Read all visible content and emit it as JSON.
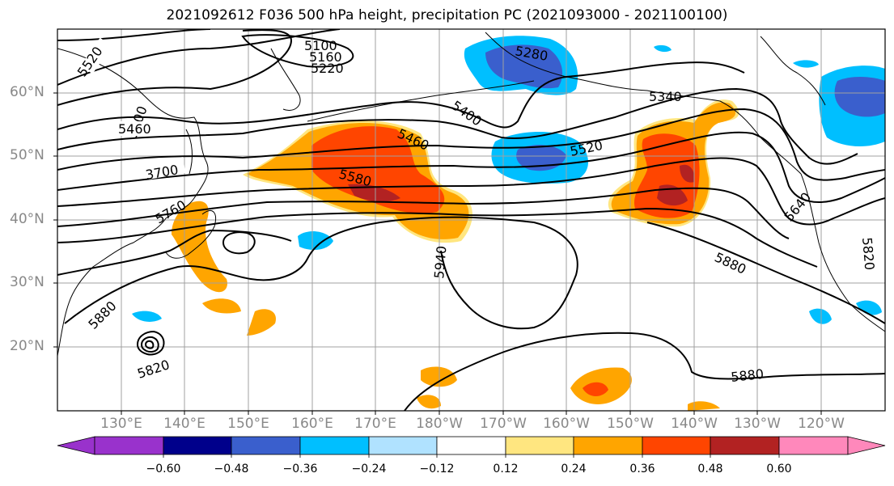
{
  "title": "2021092612 F036 500 hPa height, precipitation PC (2021093000 - 2021100100)",
  "latitude_labels": [
    "60°N",
    "50°N",
    "40°N",
    "30°N",
    "20°N"
  ],
  "longitude_labels": [
    "130°E",
    "140°E",
    "150°E",
    "160°E",
    "170°E",
    "180°W",
    "170°W",
    "160°W",
    "150°W",
    "140°W",
    "130°W",
    "120°W"
  ],
  "contour_labels": [
    "5520",
    "5400",
    "5460",
    "3700",
    "5760",
    "5880",
    "5820",
    "5580",
    "5100",
    "5160",
    "5220",
    "5280",
    "5340",
    "5400",
    "5460",
    "5520",
    "5640",
    "5820",
    "5880",
    "5940",
    "5880",
    "5640"
  ],
  "colorbar": {
    "ticks": [
      "−0.60",
      "−0.48",
      "−0.36",
      "−0.24",
      "−0.12",
      "0.12",
      "0.24",
      "0.36",
      "0.48",
      "0.60"
    ],
    "colors": [
      "#9932cc",
      "#00008b",
      "#3a5fcd",
      "#00bfff",
      "#b0e2ff",
      "#ffffff",
      "#ffe680",
      "#ffa500",
      "#ff4500",
      "#b22222",
      "#ff88bb"
    ]
  },
  "fill_colors": {
    "neg_light": "#b0e2ff",
    "neg_mid": "#00bfff",
    "neg_dark": "#3a5fcd",
    "pos_light": "#ffe680",
    "pos_mid": "#ffa500",
    "pos_strong": "#ff4500",
    "pos_dark": "#b22222"
  }
}
